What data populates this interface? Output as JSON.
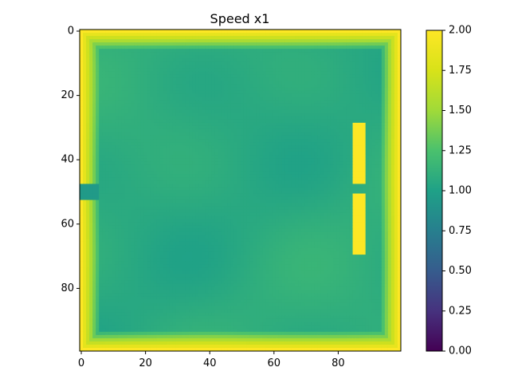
{
  "chart_data": {
    "type": "heatmap",
    "title": "Speed x1",
    "xlabel": "",
    "ylabel": "",
    "grid_size": [
      100,
      100
    ],
    "xlim": [
      0,
      99
    ],
    "ylim": [
      99,
      0
    ],
    "x_ticks": [
      0,
      20,
      40,
      60,
      80
    ],
    "y_ticks": [
      0,
      20,
      40,
      60,
      80
    ],
    "colormap": "viridis",
    "vmin": 0.0,
    "vmax": 2.0,
    "colorbar_ticks": [
      "0.00",
      "0.25",
      "0.50",
      "0.75",
      "1.00",
      "1.25",
      "1.50",
      "1.75",
      "2.00"
    ],
    "field_summary": {
      "interior_value": 1.08,
      "boundary_value": 2.0,
      "boundary_ramp_cells": 6,
      "inlet": {
        "rows": [
          48,
          52
        ],
        "cols": [
          0,
          5
        ],
        "value": 0.95
      },
      "obstacles": [
        {
          "rows": [
            29,
            47
          ],
          "cols": [
            85,
            88
          ],
          "value": 2.0
        },
        {
          "rows": [
            51,
            69
          ],
          "cols": [
            85,
            88
          ],
          "value": 2.0
        }
      ]
    }
  }
}
